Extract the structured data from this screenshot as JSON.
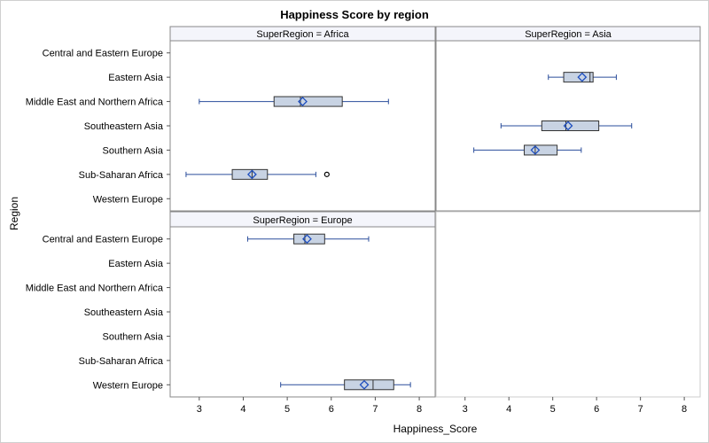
{
  "chart_data": {
    "type": "box",
    "title": "Happiness Score by region",
    "xlabel": "Happiness_Score",
    "ylabel": "Region",
    "xlim": [
      2.5,
      8.2
    ],
    "xticks": [
      3,
      4,
      5,
      6,
      7,
      8
    ],
    "categories": [
      "Central and Eastern Europe",
      "Eastern Asia",
      "Middle East and Northern Africa",
      "Southeastern Asia",
      "Southern Asia",
      "Sub-Saharan Africa",
      "Western Europe"
    ],
    "panel_label_prefix": "SuperRegion = ",
    "panels": [
      {
        "name": "Africa",
        "boxes": [
          {
            "category": "Middle East and Northern Africa",
            "whisker_low": 3.0,
            "q1": 4.7,
            "median": 5.3,
            "q3": 6.25,
            "whisker_high": 7.3,
            "mean": 5.35,
            "outliers": []
          },
          {
            "category": "Sub-Saharan Africa",
            "whisker_low": 2.7,
            "q1": 3.75,
            "median": 4.2,
            "q3": 4.55,
            "whisker_high": 5.65,
            "mean": 4.2,
            "outliers": [
              5.9
            ]
          }
        ]
      },
      {
        "name": "Asia",
        "boxes": [
          {
            "category": "Eastern Asia",
            "whisker_low": 4.9,
            "q1": 5.25,
            "median": 5.85,
            "q3": 5.92,
            "whisker_high": 6.45,
            "mean": 5.67,
            "outliers": []
          },
          {
            "category": "Southeastern Asia",
            "whisker_low": 3.82,
            "q1": 4.75,
            "median": 5.3,
            "q3": 6.05,
            "whisker_high": 6.8,
            "mean": 5.35,
            "outliers": []
          },
          {
            "category": "Southern Asia",
            "whisker_low": 3.2,
            "q1": 4.35,
            "median": 4.6,
            "q3": 5.1,
            "whisker_high": 5.65,
            "mean": 4.6,
            "outliers": []
          }
        ]
      },
      {
        "name": "Europe",
        "boxes": [
          {
            "category": "Central and Eastern Europe",
            "whisker_low": 4.1,
            "q1": 5.15,
            "median": 5.4,
            "q3": 5.85,
            "whisker_high": 6.85,
            "mean": 5.45,
            "outliers": []
          },
          {
            "category": "Western Europe",
            "whisker_low": 4.85,
            "q1": 6.3,
            "median": 6.95,
            "q3": 7.42,
            "whisker_high": 7.8,
            "mean": 6.75,
            "outliers": []
          }
        ]
      }
    ],
    "colors": {
      "box_fill": "#c8d3e3",
      "box_edge": "#333333",
      "whisker": "#2a4d9b",
      "mean_marker": "#1f4fbf",
      "strip_fill": "#f4f5fb",
      "frame": "#888888"
    },
    "grid": false,
    "legend": "none"
  }
}
